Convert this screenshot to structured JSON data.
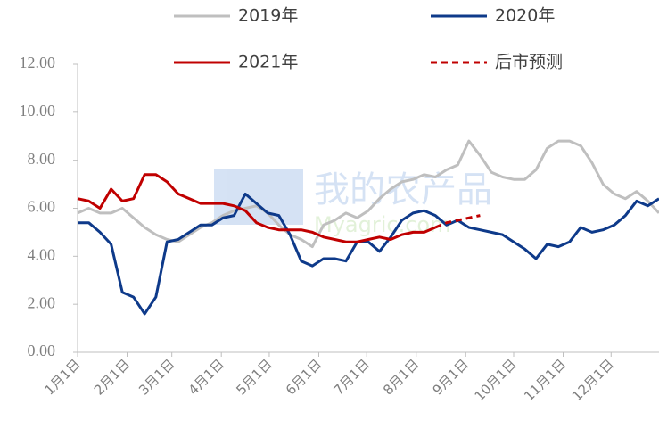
{
  "chart_data": {
    "type": "line",
    "watermark": [
      "我的农产品",
      "Myagric.com"
    ],
    "x": [
      0,
      7,
      14,
      21,
      28,
      35,
      42,
      49,
      56,
      63,
      70,
      77,
      84,
      91,
      98,
      105,
      112,
      119,
      126,
      133,
      140,
      147,
      154,
      161,
      168,
      175,
      182,
      189,
      196,
      203,
      210,
      217,
      224,
      231,
      238,
      245,
      252,
      259,
      266,
      273,
      280,
      287,
      294,
      301,
      308,
      315,
      322,
      329,
      336,
      343,
      350,
      357,
      364
    ],
    "xlim": [
      0,
      364
    ],
    "xticks": [
      {
        "value": 0,
        "label": "1月1日"
      },
      {
        "value": 31,
        "label": "2月1日"
      },
      {
        "value": 59,
        "label": "3月1日"
      },
      {
        "value": 90,
        "label": "4月1日"
      },
      {
        "value": 120,
        "label": "5月1日"
      },
      {
        "value": 151,
        "label": "6月1日"
      },
      {
        "value": 181,
        "label": "7月1日"
      },
      {
        "value": 212,
        "label": "8月1日"
      },
      {
        "value": 243,
        "label": "9月1日"
      },
      {
        "value": 273,
        "label": "10月1日"
      },
      {
        "value": 304,
        "label": "11月1日"
      },
      {
        "value": 334,
        "label": "12月1日"
      }
    ],
    "ylim": [
      0,
      12
    ],
    "yticks": [
      {
        "value": 0,
        "label": "0.00"
      },
      {
        "value": 2,
        "label": "2.00"
      },
      {
        "value": 4,
        "label": "4.00"
      },
      {
        "value": 6,
        "label": "6.00"
      },
      {
        "value": 8,
        "label": "8.00"
      },
      {
        "value": 10,
        "label": "10.00"
      },
      {
        "value": 12,
        "label": "12.00"
      }
    ],
    "grid": false,
    "series": [
      {
        "name": "2019年",
        "color": "#bfbfbf",
        "dash": false,
        "values": [
          5.8,
          6.0,
          5.8,
          5.8,
          6.0,
          5.6,
          5.2,
          4.9,
          4.7,
          4.6,
          4.9,
          5.2,
          5.4,
          5.7,
          5.9,
          6.0,
          6.1,
          5.8,
          5.3,
          4.9,
          4.7,
          4.4,
          5.3,
          5.5,
          5.8,
          5.6,
          5.9,
          6.4,
          6.8,
          7.1,
          7.2,
          7.4,
          7.3,
          7.6,
          7.8,
          8.8,
          8.2,
          7.5,
          7.3,
          7.2,
          7.2,
          7.6,
          8.5,
          8.8,
          8.8,
          8.6,
          7.9,
          7.0,
          6.6,
          6.4,
          6.7,
          6.3,
          5.8
        ]
      },
      {
        "name": "2020年",
        "color": "#0e3a8a",
        "dash": false,
        "values": [
          5.4,
          5.4,
          5.0,
          4.5,
          2.5,
          2.3,
          1.6,
          2.3,
          4.6,
          4.7,
          5.0,
          5.3,
          5.3,
          5.6,
          5.7,
          6.6,
          6.2,
          5.8,
          5.7,
          4.9,
          3.8,
          3.6,
          3.9,
          3.9,
          3.8,
          4.6,
          4.6,
          4.2,
          4.8,
          5.5,
          5.8,
          5.9,
          5.7,
          5.3,
          5.5,
          5.2,
          5.1,
          5.0,
          4.9,
          4.6,
          4.3,
          3.9,
          4.5,
          4.4,
          4.6,
          5.2,
          5.0,
          5.1,
          5.3,
          5.7,
          6.3,
          6.1,
          6.4
        ]
      },
      {
        "name": "2021年",
        "color": "#c00000",
        "dash": false,
        "values": [
          6.4,
          6.3,
          6.0,
          6.8,
          6.3,
          6.4,
          7.4,
          7.4,
          7.1,
          6.6,
          6.4,
          6.2,
          6.2,
          6.2,
          6.1,
          5.9,
          5.4,
          5.2,
          5.1,
          5.1,
          5.1,
          5.0,
          4.8,
          4.7,
          4.6,
          4.6,
          4.7,
          4.8,
          4.7,
          4.9,
          5.0,
          5.0,
          5.2,
          null,
          null,
          null,
          null,
          null,
          null,
          null,
          null,
          null,
          null,
          null,
          null,
          null,
          null,
          null,
          null,
          null,
          null,
          null,
          null
        ]
      },
      {
        "name": "后市预测",
        "color": "#c00000",
        "dash": true,
        "values": [
          null,
          null,
          null,
          null,
          null,
          null,
          null,
          null,
          null,
          null,
          null,
          null,
          null,
          null,
          null,
          null,
          null,
          null,
          null,
          null,
          null,
          null,
          null,
          null,
          null,
          null,
          null,
          null,
          null,
          null,
          null,
          null,
          5.2,
          5.4,
          5.5,
          5.6,
          5.7,
          null,
          null,
          null,
          null,
          null,
          null,
          null,
          null,
          null,
          null,
          null,
          null,
          null,
          null,
          null,
          null
        ]
      }
    ]
  }
}
